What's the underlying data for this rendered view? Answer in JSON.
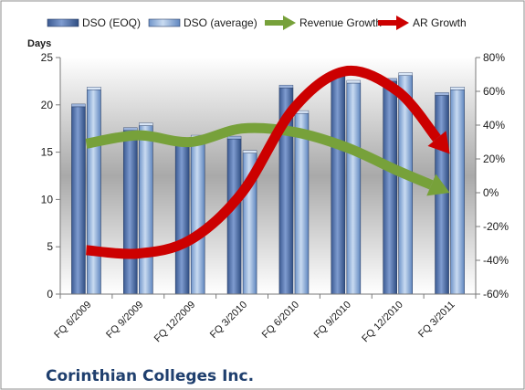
{
  "chart_data": {
    "type": "bar",
    "caption": "Corinthian Colleges Inc.",
    "y_left_label": "Days",
    "y_left_range": [
      0,
      25
    ],
    "y_left_ticks": [
      "0",
      "5",
      "10",
      "15",
      "20",
      "25"
    ],
    "y_right_range": [
      -60,
      80
    ],
    "y_right_ticks": [
      "-60%",
      "-40%",
      "-20%",
      "0%",
      "20%",
      "40%",
      "60%",
      "80%"
    ],
    "categories": [
      "FQ 6/2009",
      "FQ 9/2009",
      "FQ 12/2009",
      "FQ 3/2010",
      "FQ 6/2010",
      "FQ 9/2010",
      "FQ 12/2010",
      "FQ 3/2011"
    ],
    "legend_position": "top",
    "series": [
      {
        "name": "DSO (EOQ)",
        "kind": "bar",
        "axis": "left",
        "color": "#4f6fa8",
        "values": [
          19.8,
          17.3,
          16.0,
          16.4,
          21.8,
          23.0,
          22.5,
          21.0
        ]
      },
      {
        "name": "DSO (average)",
        "kind": "bar",
        "axis": "left",
        "color": "#7fa4d6",
        "values": [
          21.6,
          17.8,
          16.5,
          14.9,
          19.1,
          22.3,
          23.1,
          21.6
        ]
      },
      {
        "name": "Revenue Growth",
        "kind": "arrow",
        "axis": "right",
        "color": "#77a13a",
        "values": [
          29,
          34,
          30,
          38,
          36,
          27,
          13,
          0
        ]
      },
      {
        "name": "AR Growth",
        "kind": "arrow",
        "axis": "right",
        "color": "#cc0000",
        "values": [
          -34,
          -36,
          -28,
          0,
          50,
          72,
          60,
          23
        ]
      }
    ]
  }
}
